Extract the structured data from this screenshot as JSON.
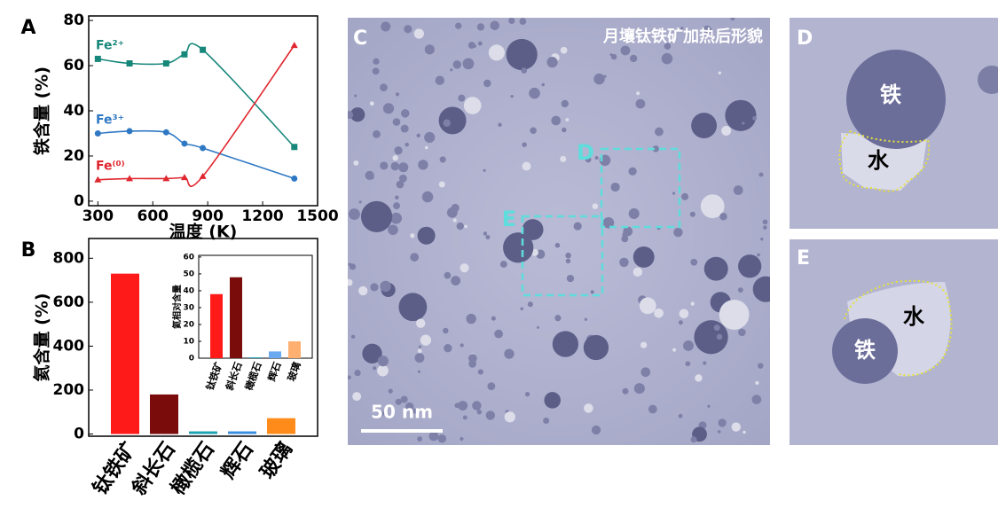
{
  "chart_data": [
    {
      "type": "line",
      "label": "A",
      "xlabel": "温度 (K)",
      "ylabel": "铁含量 (%)",
      "x": [
        300,
        473,
        673,
        773,
        873,
        1373
      ],
      "series": [
        {
          "name": "Fe²⁺",
          "color": "#17877a",
          "marker": "square",
          "values": [
            63,
            61,
            61,
            65,
            67,
            24
          ]
        },
        {
          "name": "Fe³⁺",
          "color": "#2f78c4",
          "marker": "circle",
          "values": [
            30,
            31,
            30.5,
            25.5,
            23.5,
            10
          ]
        },
        {
          "name": "Fe⁽⁰⁾",
          "color": "#e0262e",
          "marker": "triangle",
          "values": [
            9.5,
            10,
            10,
            10.5,
            11,
            69
          ]
        }
      ],
      "xlim": [
        250,
        1500
      ],
      "ylim": [
        -2,
        82
      ],
      "xticks": [
        300,
        600,
        900,
        1200,
        1500
      ],
      "yticks": [
        0,
        20,
        40,
        60,
        80
      ]
    },
    {
      "type": "bar",
      "label": "B",
      "ylabel": "氦含量 (%)",
      "categories": [
        "钛铁矿",
        "斜长石",
        "橄榄石",
        "辉石",
        "玻璃"
      ],
      "values": [
        730,
        180,
        12,
        12,
        72
      ],
      "colors": [
        "#ff1a1a",
        "#7b0c0c",
        "#1fa3b3",
        "#3a8ee0",
        "#ff8c1a"
      ],
      "ylim": [
        -10,
        890
      ],
      "yticks": [
        0,
        200,
        400,
        600,
        800
      ]
    },
    {
      "type": "bar",
      "ylabel": "氦相对含量",
      "categories": [
        "钛铁矿",
        "斜长石",
        "橄榄石",
        "辉石",
        "玻璃"
      ],
      "values": [
        38,
        48,
        0.5,
        4,
        10
      ],
      "colors": [
        "#ff1a1a",
        "#7b0c0c",
        "#1fa3b3",
        "#6aa8f0",
        "#ffb070"
      ],
      "ylim": [
        0,
        61
      ],
      "yticks": [
        0,
        10,
        20,
        30,
        40,
        50,
        60
      ]
    }
  ],
  "micrographs": {
    "C": {
      "label": "C",
      "title": "月壤钛铁矿加热后形貌",
      "scale_bar": "50 nm",
      "box_d": "D",
      "box_e": "E"
    },
    "D": {
      "label": "D",
      "iron": "铁",
      "water": "水"
    },
    "E": {
      "label": "E",
      "iron": "铁",
      "water": "水"
    }
  }
}
